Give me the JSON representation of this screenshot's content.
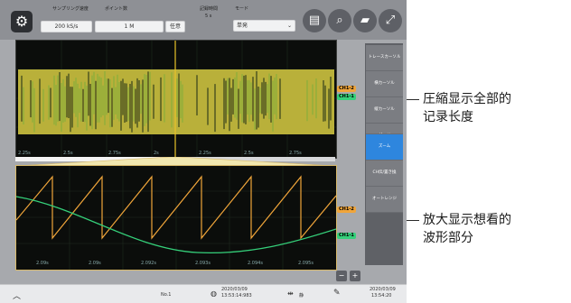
{
  "toolbar": {
    "sampling_label": "サンプリング速度",
    "sampling_value": "200 kS/s",
    "points_label": "ポイント数",
    "points_value": "1 M",
    "any_button": "任意",
    "rec_time_label": "記録時間",
    "rec_time_value": "5 s",
    "mode_label": "モード",
    "mode_value": "単発"
  },
  "sidebar": {
    "items": [
      {
        "label": "トレースカーソル"
      },
      {
        "label": "横カーソル"
      },
      {
        "label": "縦カーソル"
      },
      {
        "label": "ゲージ"
      },
      {
        "label": "ズーム"
      },
      {
        "label": "CH伝/置き換"
      },
      {
        "label": "オートレンジ"
      }
    ]
  },
  "overview": {
    "ticks": [
      "2.25s",
      "2.5s",
      "2.75s",
      "2s",
      "2.25s",
      "2.5s",
      "2.75s"
    ],
    "tag_ch1": "CH1-2",
    "tag_ch2": "CH1-1"
  },
  "zoom": {
    "ticks": [
      "2.09s",
      "2.09s",
      "2.092s",
      "2.093s",
      "2.094s",
      "2.095s"
    ],
    "tag_ch1": "CH1-2",
    "tag_ch2": "CH1-1"
  },
  "status": {
    "left_label": "No.1",
    "date1": "2020/03/09",
    "time1": "13:53:14:983",
    "center_label": "静",
    "date2": "2020/03/09",
    "time2": "13:54:20"
  },
  "annotations": {
    "top_line1": "圧縮显示全部的",
    "top_line2": "记录长度",
    "bottom_line1": "放大显示想看的",
    "bottom_line2": "波形部分"
  },
  "colors": {
    "waveform_yellow": "#e8c229",
    "waveform_green": "#35d07a",
    "active_blue": "#2e86de"
  }
}
